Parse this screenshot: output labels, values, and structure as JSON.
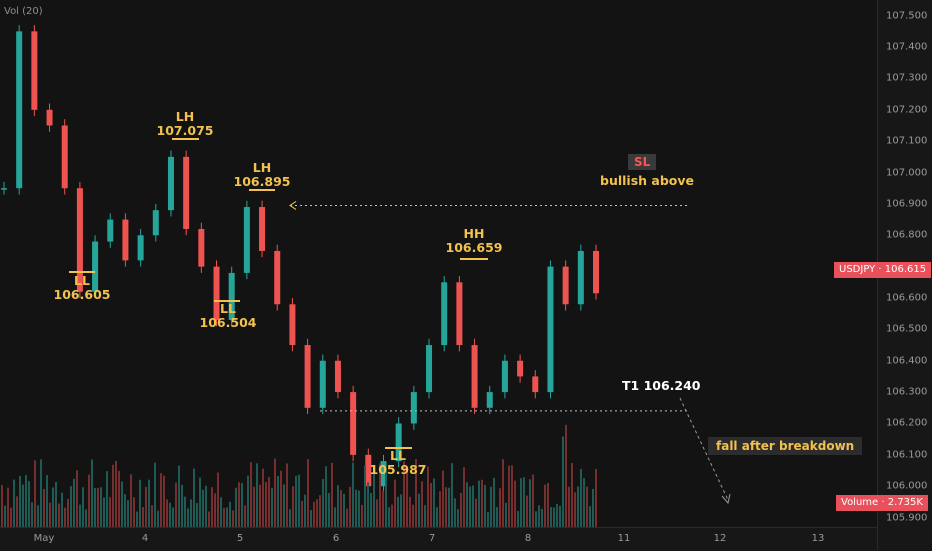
{
  "indicator_label": "Vol (20)",
  "symbol_tag": "USDJPY · 106.615",
  "volume_tag": "Volume · 2.735K",
  "colors": {
    "up": "#26a69a",
    "down": "#ef5350",
    "annotation": "#f2c14e",
    "tag": "#e8505b",
    "background": "#131313"
  },
  "annotations": {
    "lh1": {
      "l1": "LH",
      "l2": "107.075"
    },
    "lh2": {
      "l1": "LH",
      "l2": "106.895"
    },
    "ll1": {
      "l1": "LL",
      "l2": "106.605"
    },
    "ll2": {
      "l1": "LL",
      "l2": "106.504"
    },
    "ll3": {
      "l1": "LL",
      "l2": "105.987"
    },
    "hh": {
      "l1": "HH",
      "l2": "106.659"
    },
    "t1": "T1 106.240",
    "sl": "SL",
    "bullish": "bullish above",
    "fall": "fall after breakdown"
  },
  "chart_data": {
    "type": "line",
    "title": "",
    "price_axis": {
      "ylim": [
        105.87,
        107.55
      ],
      "ticks": [
        "107.500",
        "107.400",
        "107.300",
        "107.200",
        "107.100",
        "107.000",
        "106.900",
        "106.800",
        "106.700",
        "106.600",
        "106.500",
        "106.400",
        "106.300",
        "106.200",
        "106.100",
        "106.000",
        "105.900"
      ]
    },
    "time_axis": {
      "ticks": [
        "May",
        "4",
        "5",
        "6",
        "7",
        "8",
        "11",
        "12",
        "13"
      ]
    },
    "series": [
      {
        "values": [
          [
            "May",
            106.95
          ],
          [
            "May",
            107.45
          ],
          [
            "May",
            107.2
          ],
          [
            "May",
            107.15
          ],
          [
            "May",
            106.95
          ],
          [
            "May",
            106.62
          ],
          [
            "May",
            106.78
          ],
          [
            "May",
            106.85
          ],
          [
            "4",
            106.72
          ],
          [
            "4",
            106.8
          ],
          [
            "4",
            106.88
          ],
          [
            "4",
            107.05
          ],
          [
            "4",
            106.82
          ],
          [
            "4",
            106.7
          ],
          [
            "5",
            106.53
          ],
          [
            "5",
            106.68
          ],
          [
            "5",
            106.89
          ],
          [
            "5",
            106.75
          ],
          [
            "5",
            106.58
          ],
          [
            "5",
            106.45
          ],
          [
            "6",
            106.25
          ],
          [
            "6",
            106.4
          ],
          [
            "6",
            106.3
          ],
          [
            "6",
            106.1
          ],
          [
            "6",
            106.0
          ],
          [
            "6",
            106.08
          ],
          [
            "6",
            106.2
          ],
          [
            "7",
            106.3
          ],
          [
            "7",
            106.45
          ],
          [
            "7",
            106.65
          ],
          [
            "7",
            106.45
          ],
          [
            "7",
            106.25
          ],
          [
            "7",
            106.3
          ],
          [
            "8",
            106.4
          ],
          [
            "8",
            106.35
          ],
          [
            "8",
            106.3
          ],
          [
            "8",
            106.7
          ],
          [
            "8",
            106.58
          ],
          [
            "8",
            106.75
          ],
          [
            "8",
            106.615
          ]
        ]
      }
    ],
    "levels": [
      {
        "name": "bullish above",
        "value": 106.895
      },
      {
        "name": "T1",
        "value": 106.24
      }
    ],
    "volume": {
      "last": "2.735K"
    }
  }
}
